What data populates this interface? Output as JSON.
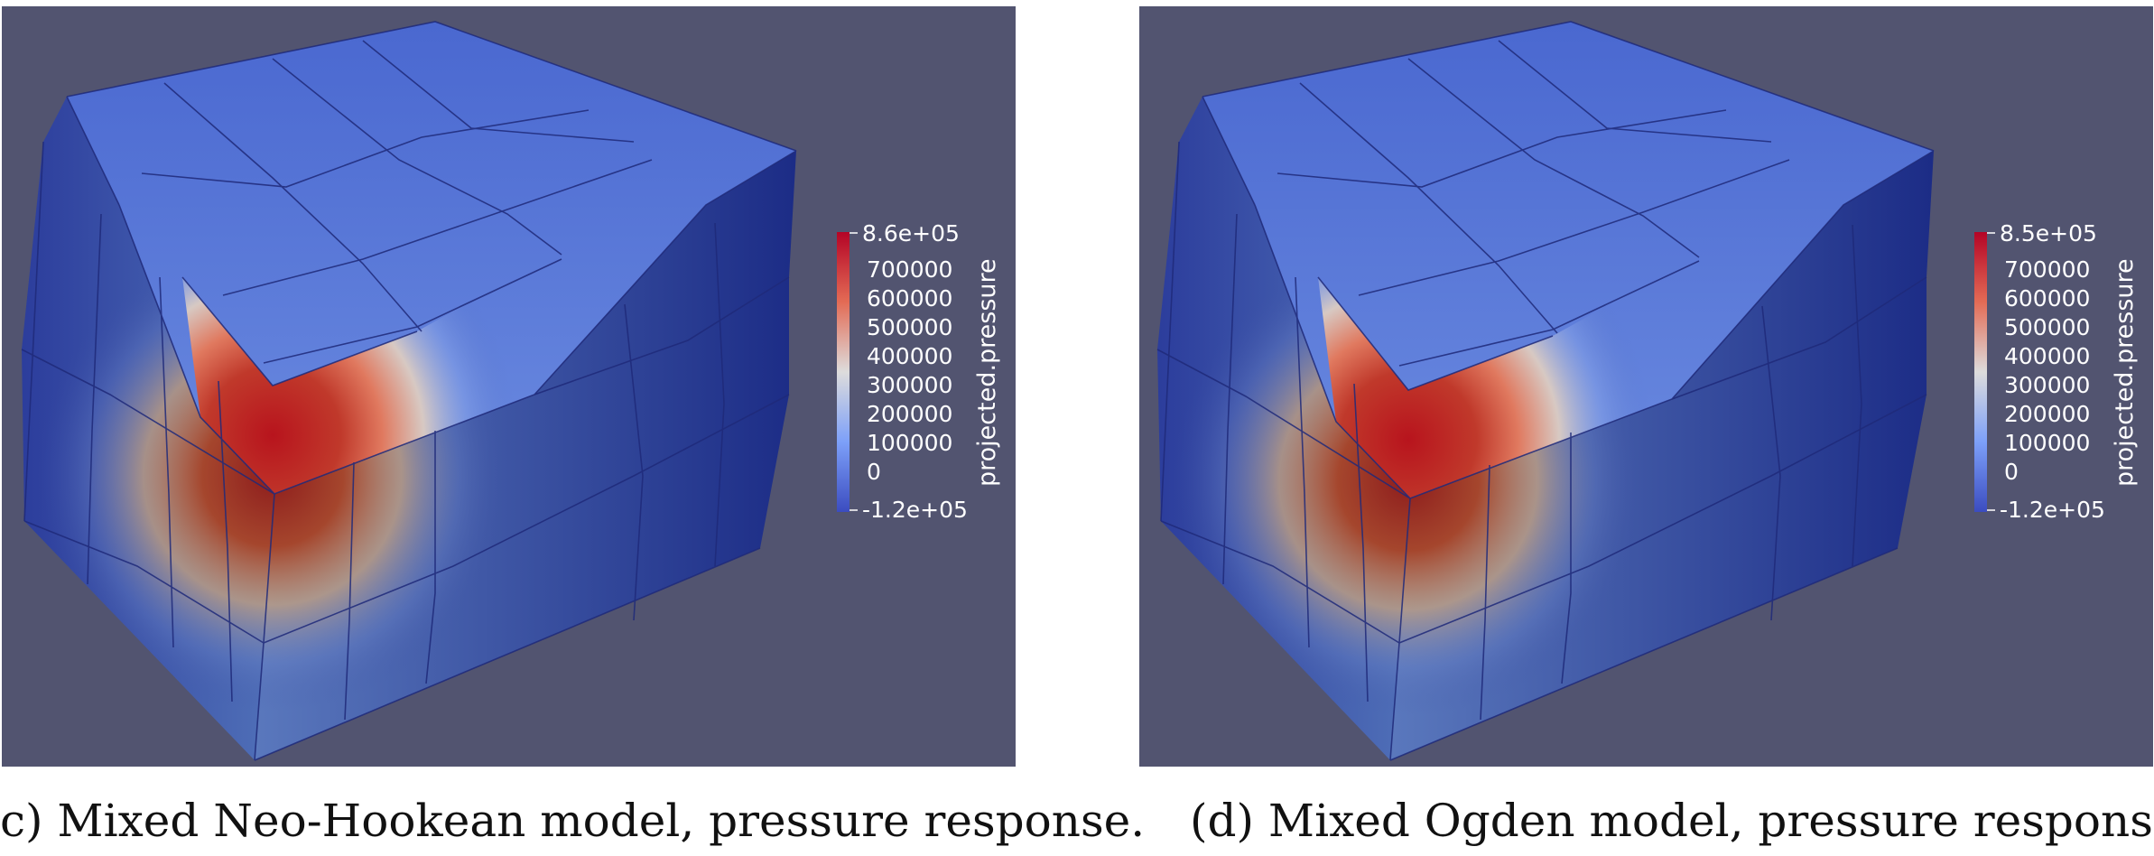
{
  "panels": [
    {
      "id": "c",
      "colorbar": {
        "title": "projected.pressure",
        "max_label": "8.6e+05",
        "ticks": [
          "700000",
          "600000",
          "500000",
          "400000",
          "300000",
          "200000",
          "100000",
          "0"
        ],
        "min_label": "-1.2e+05"
      },
      "caption": "c) Mixed Neo-Hookean model, pressure response."
    },
    {
      "id": "d",
      "colorbar": {
        "title": "projected.pressure",
        "max_label": "8.5e+05",
        "ticks": [
          "700000",
          "600000",
          "500000",
          "400000",
          "300000",
          "200000",
          "100000",
          "0"
        ],
        "min_label": "-1.2e+05"
      },
      "caption": "(d) Mixed Ogden model, pressure response."
    }
  ],
  "colors": {
    "background": "#525470",
    "cool": "#3b4cc0",
    "warm": "#b40426",
    "edge": "#1f2a7a"
  }
}
